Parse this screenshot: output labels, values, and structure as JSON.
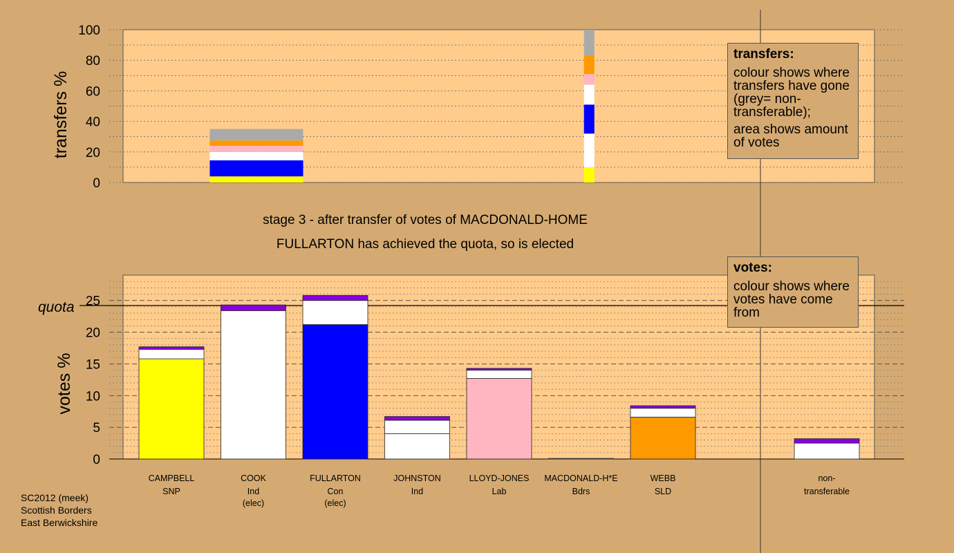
{
  "transfers_legend": {
    "title": "transfers:",
    "line1": "colour shows where transfers have gone (grey= non-transferable);",
    "line2": "area shows amount of votes"
  },
  "votes_legend": {
    "title": "votes:",
    "line1": "colour shows where votes have come from"
  },
  "footer": {
    "line1": "SC2012 (meek)",
    "line2": "Scottish Borders",
    "line3": "East Berwickshire"
  },
  "chart_data": [
    {
      "type": "bar",
      "stacked": true,
      "ylabel": "transfers %",
      "ylim": [
        0,
        100
      ],
      "yticks": [
        0,
        20,
        40,
        60,
        80,
        100
      ],
      "grid": true,
      "legend_position": "top-right",
      "bars": [
        {
          "slot": 1,
          "segments": [
            {
              "to": "CAMPBELL",
              "value": 4,
              "color": "#ffff00"
            },
            {
              "to": "FULLARTON",
              "value": 10.5,
              "color": "#0000ff"
            },
            {
              "to": "COOK",
              "value": 5.5,
              "color": "#ffffff"
            },
            {
              "to": "LLOYD-JONES",
              "value": 4,
              "color": "#ffb6c1"
            },
            {
              "to": "WEBB",
              "value": 3.5,
              "color": "#ff9900"
            },
            {
              "to": "non-transferable",
              "value": 7.5,
              "color": "#aaaaaa"
            }
          ]
        },
        {
          "slot": 5.5,
          "segments": [
            {
              "to": "CAMPBELL",
              "value": 10,
              "color": "#ffff00"
            },
            {
              "to": "COOK",
              "value": 22,
              "color": "#ffffff"
            },
            {
              "to": "FULLARTON",
              "value": 19,
              "color": "#0000ff"
            },
            {
              "to": "JOHNSTON",
              "value": 13,
              "color": "#ffffff"
            },
            {
              "to": "LLOYD-JONES",
              "value": 7,
              "color": "#ffb6c1"
            },
            {
              "to": "WEBB",
              "value": 12,
              "color": "#ff9900"
            },
            {
              "to": "non-transferable",
              "value": 17,
              "color": "#aaaaaa"
            }
          ]
        }
      ]
    },
    {
      "type": "bar",
      "stacked": true,
      "title": "stage 3 - after transfer of votes of MACDONALD-HOME",
      "subtitle": "FULLARTON has achieved the quota, so is elected",
      "ylabel": "votes %",
      "ylim": [
        0,
        29
      ],
      "yticks": [
        0,
        5,
        10,
        15,
        20,
        25
      ],
      "quota": 24.2,
      "quota_label": "quota",
      "grid": true,
      "legend_position": "top-right",
      "categories": [
        {
          "name": "CAMPBELL",
          "party": "SNP",
          "status": ""
        },
        {
          "name": "COOK",
          "party": "Ind",
          "status": "(elec)"
        },
        {
          "name": "FULLARTON",
          "party": "Con",
          "status": "(elec)"
        },
        {
          "name": "JOHNSTON",
          "party": "Ind",
          "status": ""
        },
        {
          "name": "LLOYD-JONES",
          "party": "Lab",
          "status": ""
        },
        {
          "name": "MACDONALD-H*E",
          "party": "Bdrs",
          "status": ""
        },
        {
          "name": "WEBB",
          "party": "SLD",
          "status": ""
        },
        {
          "name": "non-",
          "party": "transferable",
          "status": ""
        }
      ],
      "stacks": [
        {
          "slot": 0,
          "segments": [
            {
              "from": "first preferences",
              "value": 15.8,
              "color": "#ffff00"
            },
            {
              "from": "stage 2 transfers",
              "value": 1.5,
              "color": "#ffffff"
            },
            {
              "from": "MACDONALD-HOME",
              "value": 0.4,
              "color": "#8800dd"
            }
          ]
        },
        {
          "slot": 1,
          "segments": [
            {
              "from": "first preferences",
              "value": 23.4,
              "color": "#ffffff"
            },
            {
              "from": "MACDONALD-HOME",
              "value": 0.9,
              "color": "#8800dd"
            }
          ]
        },
        {
          "slot": 2,
          "segments": [
            {
              "from": "first preferences",
              "value": 21.2,
              "color": "#0000ff"
            },
            {
              "from": "stage 2 transfers",
              "value": 3.8,
              "color": "#ffffff"
            },
            {
              "from": "MACDONALD-HOME",
              "value": 0.8,
              "color": "#8800dd"
            }
          ]
        },
        {
          "slot": 3,
          "segments": [
            {
              "from": "first preferences",
              "value": 4.0,
              "color": "#ffffff"
            },
            {
              "from": "stage 2 transfers",
              "value": 2.1,
              "color": "#ffffff"
            },
            {
              "from": "MACDONALD-HOME",
              "value": 0.6,
              "color": "#8800dd"
            }
          ]
        },
        {
          "slot": 4,
          "segments": [
            {
              "from": "first preferences",
              "value": 12.7,
              "color": "#ffb6c1"
            },
            {
              "from": "stage 2 transfers",
              "value": 1.3,
              "color": "#ffffff"
            },
            {
              "from": "MACDONALD-HOME",
              "value": 0.3,
              "color": "#8800dd"
            }
          ]
        },
        {
          "slot": 5,
          "segments": [
            {
              "from": "first preferences",
              "value": 0.1,
              "color": "#ffffff"
            }
          ]
        },
        {
          "slot": 6,
          "segments": [
            {
              "from": "first preferences",
              "value": 6.6,
              "color": "#ff9900"
            },
            {
              "from": "stage 2 transfers",
              "value": 1.4,
              "color": "#ffffff"
            },
            {
              "from": "MACDONALD-HOME",
              "value": 0.4,
              "color": "#8800dd"
            }
          ]
        },
        {
          "slot": 8,
          "segments": [
            {
              "from": "stage 2 transfers",
              "value": 2.5,
              "color": "#ffffff"
            },
            {
              "from": "MACDONALD-HOME",
              "value": 0.7,
              "color": "#8800dd"
            }
          ]
        }
      ]
    }
  ]
}
